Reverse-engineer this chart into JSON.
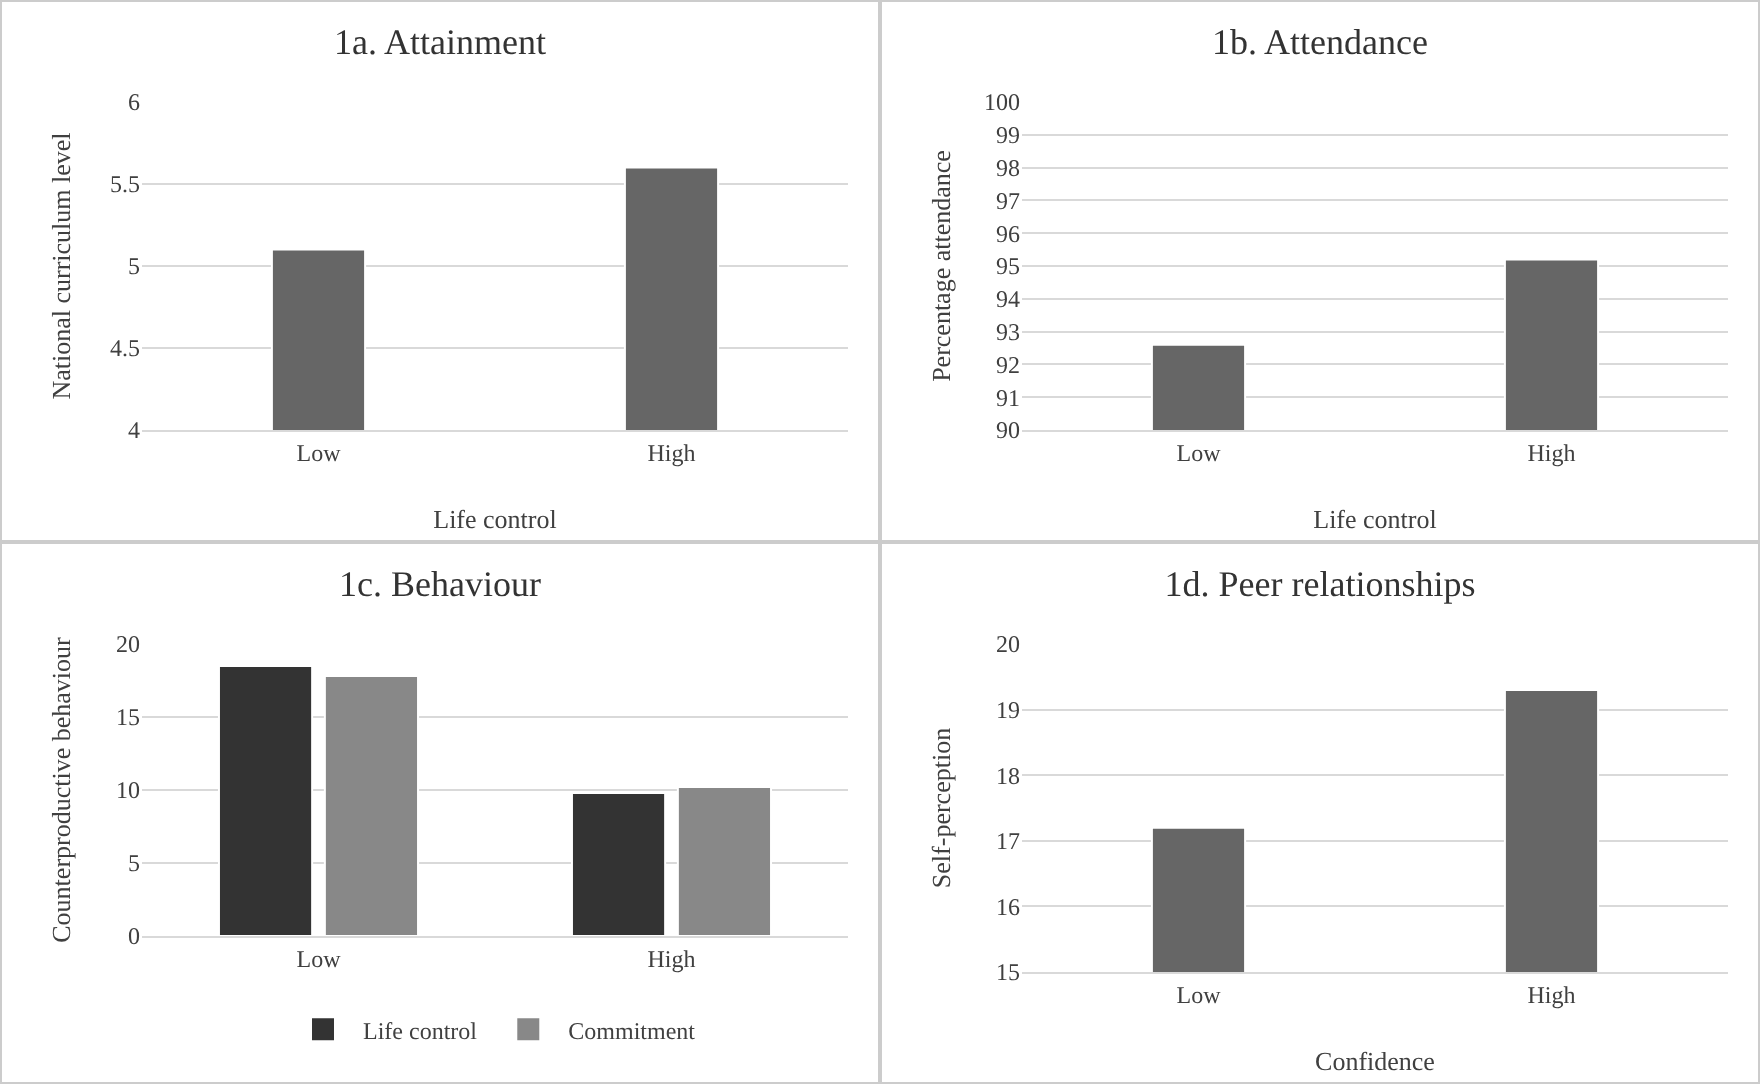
{
  "chart_data": [
    {
      "type": "bar",
      "title": "1a. Attainment",
      "xlabel": "Life control",
      "ylabel": "National curriculum level",
      "categories": [
        "Low",
        "High"
      ],
      "values": [
        5.1,
        5.6
      ],
      "color": "#666666",
      "ylim": [
        4,
        6
      ],
      "yticks": [
        4,
        4.5,
        5,
        5.5,
        6
      ],
      "grid": "y",
      "legend": false
    },
    {
      "type": "bar",
      "title": "1b. Attendance",
      "xlabel": "Life control",
      "ylabel": "Percentage attendance",
      "categories": [
        "Low",
        "High"
      ],
      "values": [
        92.6,
        95.2
      ],
      "color": "#666666",
      "ylim": [
        90,
        100
      ],
      "yticks": [
        90,
        91,
        92,
        93,
        94,
        95,
        96,
        97,
        98,
        99,
        100
      ],
      "grid": "y",
      "legend": false
    },
    {
      "type": "bar",
      "title": "1c. Behaviour",
      "ylabel": "Counterproductive behaviour",
      "categories": [
        "Low",
        "High"
      ],
      "series": [
        {
          "name": "Life control",
          "color": "#333333",
          "values": [
            18.5,
            9.8
          ]
        },
        {
          "name": "Commitment",
          "color": "#888888",
          "values": [
            17.8,
            10.2
          ]
        }
      ],
      "ylim": [
        0,
        20
      ],
      "yticks": [
        0,
        5,
        10,
        15,
        20
      ],
      "grid": "y",
      "legend": "bottom"
    },
    {
      "type": "bar",
      "title": "1d. Peer relationships",
      "xlabel": "Confidence",
      "ylabel": "Self-perception",
      "categories": [
        "Low",
        "High"
      ],
      "values": [
        17.2,
        19.3
      ],
      "color": "#666666",
      "ylim": [
        15,
        20
      ],
      "yticks": [
        15,
        16,
        17,
        18,
        19,
        20
      ],
      "grid": "y",
      "legend": false
    }
  ]
}
